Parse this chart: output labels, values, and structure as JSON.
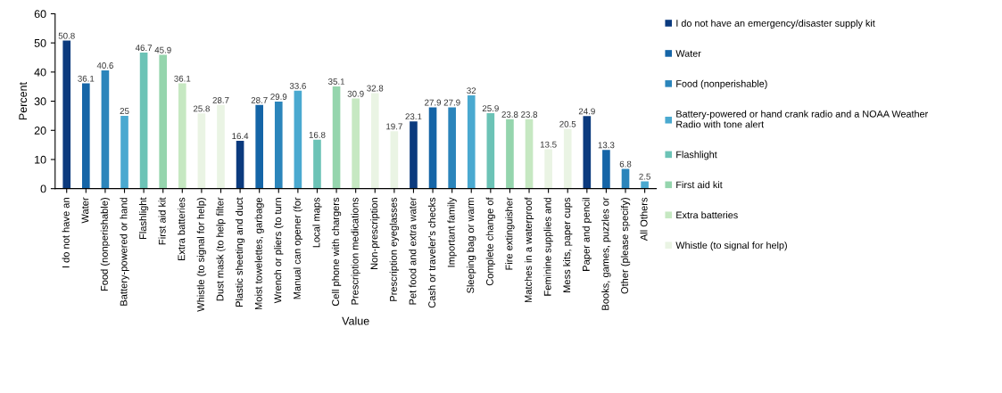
{
  "chart_data": {
    "type": "bar",
    "xlabel": "Value",
    "ylabel": "Percent",
    "categories": [
      "I do not have an",
      "Water",
      "Food (nonperishable)",
      "Battery-powered or hand",
      "Flashlight",
      "First aid kit",
      "Extra batteries",
      "Whistle (to signal for help)",
      "Dust mask (to help filter",
      "Plastic sheeting and duct",
      "Moist towelettes, garbage",
      "Wrench or pliers (to turn",
      "Manual can opener (for",
      "Local maps",
      "Cell phone with chargers",
      "Prescription medications",
      "Non-prescription",
      "Prescription eyeglasses",
      "Pet food and extra water",
      "Cash or traveler's checks",
      "Important family",
      "Sleeping bag or warm",
      "Complete change of",
      "Fire extinguisher",
      "Matches in a waterproof",
      "Feminine supplies and",
      "Mess kits, paper cups",
      "Paper and pencil",
      "Books, games, puzzles or",
      "Other (please specify)",
      "All Others"
    ],
    "series": [
      {
        "name": "I do not have an emergency/disaster supply kit",
        "color": "#0b3a7e",
        "values": [
          50.8,
          null,
          null,
          null,
          null,
          null,
          null,
          null,
          null,
          16.4,
          null,
          null,
          null,
          null,
          null,
          null,
          null,
          null,
          23.1,
          null,
          null,
          null,
          null,
          null,
          null,
          null,
          null,
          24.9,
          null,
          null,
          null
        ]
      },
      {
        "name": "Water",
        "color": "#1565a7",
        "values": [
          null,
          36.1,
          null,
          null,
          null,
          null,
          null,
          null,
          null,
          null,
          28.7,
          null,
          null,
          null,
          null,
          null,
          null,
          null,
          null,
          27.9,
          null,
          null,
          null,
          null,
          null,
          null,
          null,
          null,
          13.3,
          null,
          null
        ]
      },
      {
        "name": "Food (nonperishable)",
        "color": "#2b85bb",
        "values": [
          null,
          null,
          40.6,
          null,
          null,
          null,
          null,
          null,
          null,
          null,
          null,
          29.9,
          null,
          null,
          null,
          null,
          null,
          null,
          null,
          null,
          27.9,
          null,
          null,
          null,
          null,
          null,
          null,
          null,
          null,
          6.8,
          null
        ]
      },
      {
        "name": "Battery-powered or hand crank radio and a NOAA Weather Radio with tone alert",
        "color": "#4aa9d0",
        "values": [
          null,
          null,
          null,
          25,
          null,
          null,
          null,
          null,
          null,
          null,
          null,
          null,
          33.6,
          null,
          null,
          null,
          null,
          null,
          null,
          null,
          null,
          32,
          null,
          null,
          null,
          null,
          null,
          null,
          null,
          null,
          2.5
        ]
      },
      {
        "name": "Flashlight",
        "color": "#6cc3b6",
        "values": [
          null,
          null,
          null,
          null,
          46.7,
          null,
          null,
          null,
          null,
          null,
          null,
          null,
          null,
          16.8,
          null,
          null,
          null,
          null,
          null,
          null,
          null,
          null,
          25.9,
          null,
          null,
          null,
          null,
          null,
          null,
          null,
          null
        ]
      },
      {
        "name": "First aid kit",
        "color": "#95d5ad",
        "values": [
          null,
          null,
          null,
          null,
          null,
          45.9,
          null,
          null,
          null,
          null,
          null,
          null,
          null,
          null,
          35.1,
          null,
          null,
          null,
          null,
          null,
          null,
          null,
          null,
          23.8,
          null,
          null,
          null,
          null,
          null,
          null,
          null
        ]
      },
      {
        "name": "Extra batteries",
        "color": "#c6e8c2",
        "values": [
          null,
          null,
          null,
          null,
          null,
          null,
          36.1,
          null,
          null,
          null,
          null,
          null,
          null,
          null,
          null,
          30.9,
          null,
          null,
          null,
          null,
          null,
          null,
          null,
          null,
          23.8,
          null,
          null,
          null,
          null,
          null,
          null
        ]
      },
      {
        "name": "Whistle (to signal for help)",
        "color": "#eaf4e4",
        "values": [
          null,
          null,
          null,
          null,
          null,
          null,
          null,
          25.8,
          28.7,
          null,
          null,
          null,
          null,
          null,
          null,
          null,
          32.8,
          19.7,
          null,
          null,
          null,
          null,
          null,
          null,
          null,
          13.5,
          20.5,
          null,
          null,
          null,
          null
        ]
      }
    ],
    "ylim": [
      0,
      60
    ],
    "yticks": [
      0,
      10,
      20,
      30,
      40,
      50,
      60
    ],
    "data_labels": true,
    "legend": "right",
    "grid": false
  }
}
